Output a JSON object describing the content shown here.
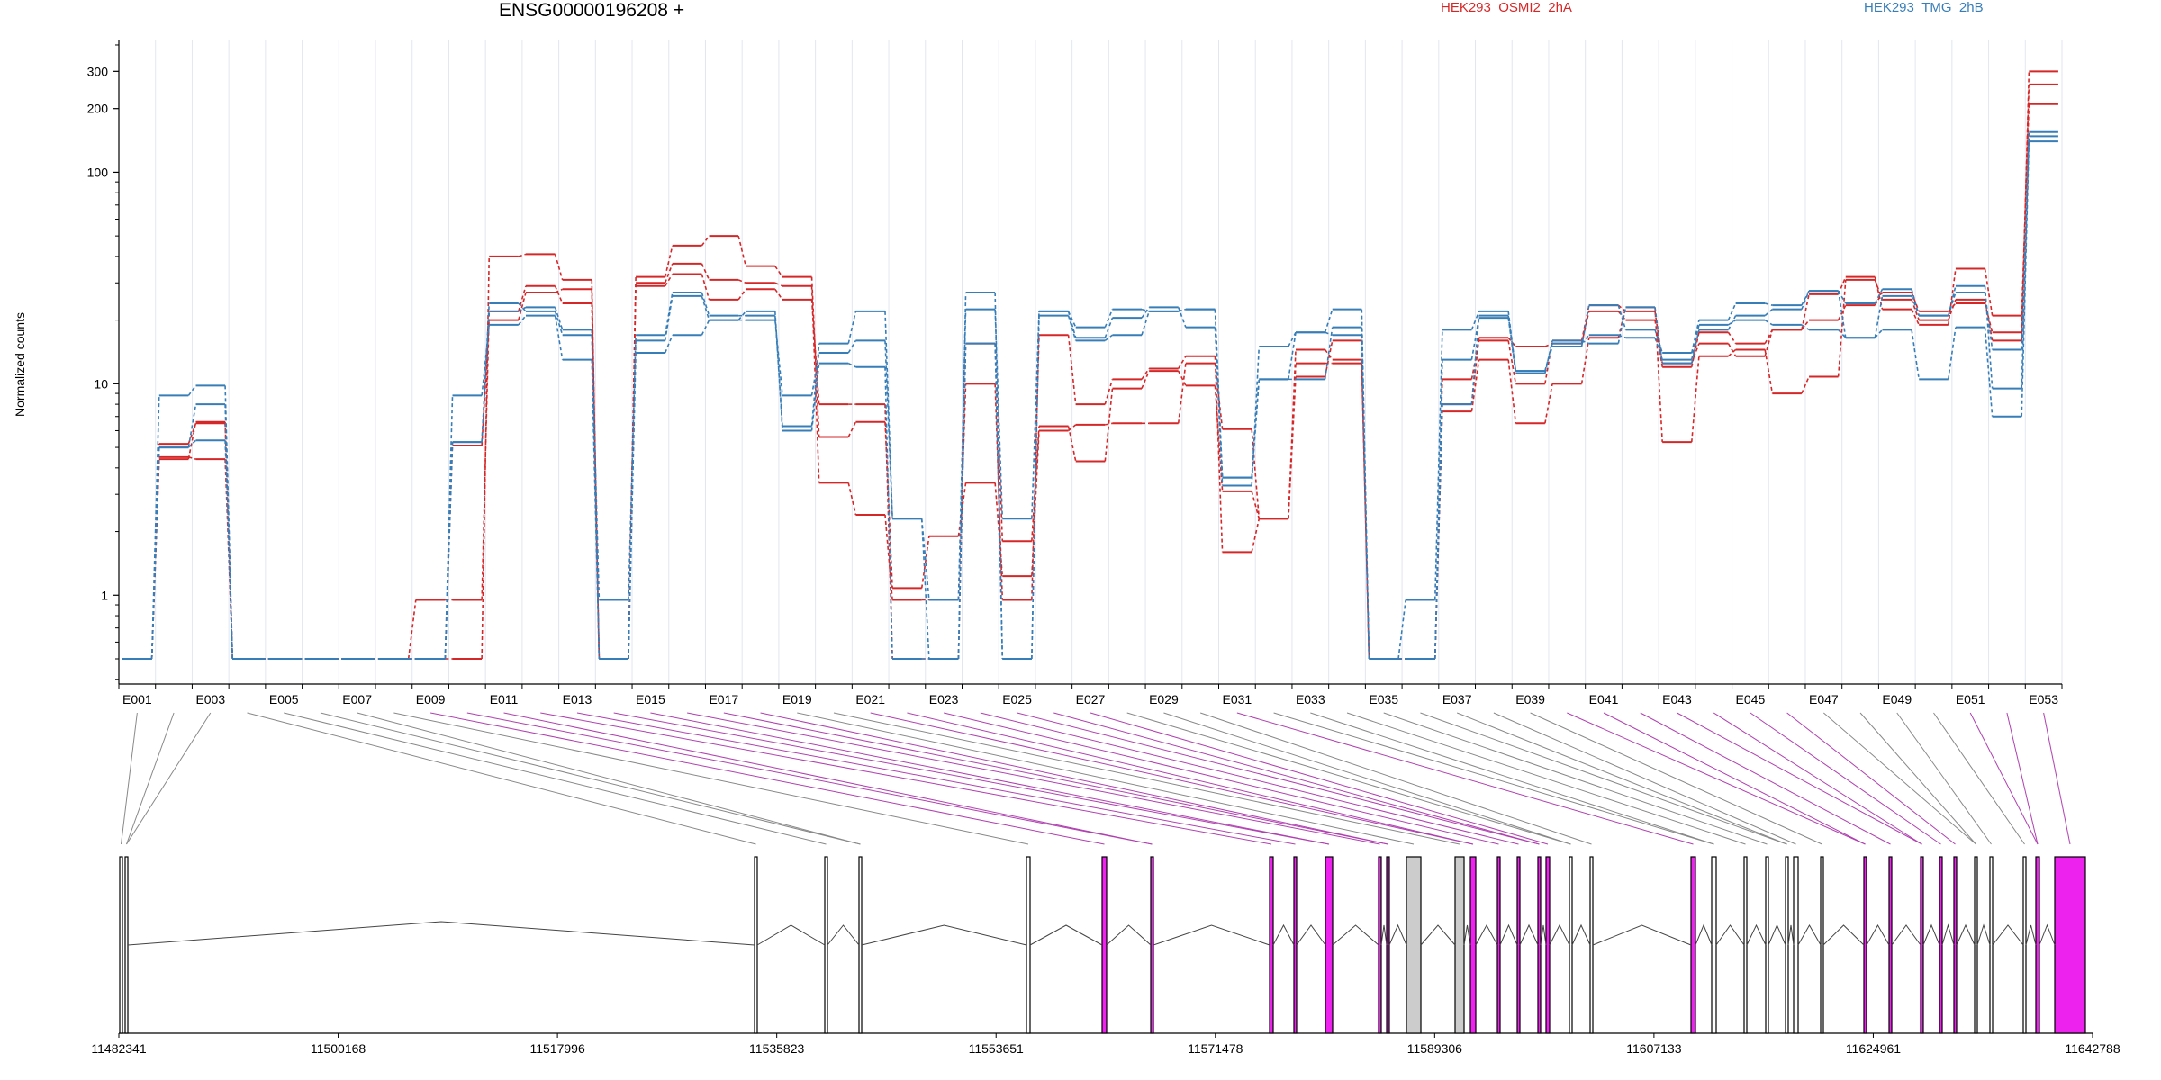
{
  "chart_data": {
    "type": "line",
    "title": "ENSG00000196208 +",
    "ylabel": "Normalized counts",
    "y_scale": "log",
    "y_ticks": [
      1,
      10,
      100,
      200,
      300
    ],
    "y_tick_labels": [
      "1",
      "10",
      "100",
      "200",
      "300"
    ],
    "x_categories": [
      "E001",
      "E002",
      "E003",
      "E004",
      "E005",
      "E006",
      "E007",
      "E008",
      "E009",
      "E010",
      "E011",
      "E012",
      "E013",
      "E014",
      "E015",
      "E016",
      "E017",
      "E018",
      "E019",
      "E020",
      "E021",
      "E022",
      "E023",
      "E024",
      "E025",
      "E026",
      "E027",
      "E028",
      "E029",
      "E030",
      "E031",
      "E032",
      "E033",
      "E034",
      "E035",
      "E036",
      "E037",
      "E038",
      "E039",
      "E040",
      "E041",
      "E042",
      "E043",
      "E044",
      "E045",
      "E046",
      "E047",
      "E048",
      "E049",
      "E050",
      "E051",
      "E052",
      "E053"
    ],
    "x_tick_labels": [
      "E001",
      "E003",
      "E005",
      "E007",
      "E009",
      "E011",
      "E013",
      "E015",
      "E017",
      "E019",
      "E021",
      "E023",
      "E025",
      "E027",
      "E029",
      "E031",
      "E033",
      "E035",
      "E037",
      "E039",
      "E041",
      "E043",
      "E045",
      "E047",
      "E049",
      "E051",
      "E053"
    ],
    "legend": [
      {
        "label": "HEK293_OSMI2_2hA",
        "color": "#d62728"
      },
      {
        "label": "HEK293_TMG_2hB",
        "color": "#377eb8"
      }
    ],
    "series": [
      {
        "group": "red",
        "values": [
          0.5,
          4.5,
          4.4,
          0.5,
          0.5,
          0.5,
          0.5,
          0.5,
          0.5,
          0.5,
          40,
          41,
          31,
          0.5,
          32,
          45,
          50,
          36,
          32,
          5.6,
          6.6,
          1.08,
          1.9,
          3.4,
          1.23,
          6.0,
          6.4,
          6.5,
          6.5,
          12.5,
          6.1,
          2.3,
          12.5,
          12.5,
          0.5,
          0.5,
          7.4,
          13.0,
          6.5,
          10.0,
          16.5,
          23.0,
          5.3,
          13.5,
          14.5,
          9.0,
          10.8,
          31.0,
          25.0,
          20.0,
          25.0,
          16.0,
          300
        ]
      },
      {
        "group": "red",
        "values": [
          0.5,
          4.4,
          6.6,
          0.5,
          0.5,
          0.5,
          0.5,
          0.5,
          0.95,
          0.95,
          22,
          29,
          24,
          0.5,
          30,
          37,
          31,
          30,
          29,
          3.4,
          2.4,
          0.95,
          0.95,
          10.0,
          0.95,
          17.0,
          8.0,
          10.5,
          11.8,
          13.5,
          1.6,
          2.3,
          10.8,
          16.0,
          0.5,
          0.5,
          8.0,
          16.5,
          15.0,
          15.5,
          22.0,
          20.0,
          12.0,
          17.5,
          15.5,
          18.0,
          26.5,
          32.0,
          22.5,
          19.0,
          35.0,
          21.0,
          210
        ]
      },
      {
        "group": "red",
        "values": [
          0.5,
          5.2,
          6.5,
          0.5,
          0.5,
          0.5,
          0.5,
          0.5,
          0.5,
          5.1,
          20,
          27,
          28,
          0.5,
          29,
          33,
          25,
          28,
          25,
          8.0,
          8.0,
          0.5,
          0.5,
          15.5,
          1.8,
          6.3,
          4.3,
          9.5,
          11.5,
          9.8,
          3.1,
          2.3,
          14.5,
          13.0,
          0.5,
          0.5,
          10.5,
          16.0,
          10.0,
          16.0,
          23.5,
          22.0,
          12.5,
          15.5,
          13.5,
          18.0,
          20.0,
          23.5,
          27.0,
          22.0,
          24.0,
          17.5,
          260
        ]
      },
      {
        "group": "blue",
        "values": [
          0.5,
          8.8,
          9.8,
          0.5,
          0.5,
          0.5,
          0.5,
          0.5,
          0.5,
          5.3,
          24,
          22,
          17,
          0.95,
          17,
          27,
          21,
          21,
          6.3,
          15.5,
          22,
          2.3,
          0.5,
          27.0,
          0.5,
          21.0,
          16.0,
          17.0,
          22.0,
          22.5,
          3.6,
          10.5,
          10.5,
          18.5,
          0.5,
          0.95,
          18.0,
          22.0,
          11.5,
          15.0,
          23.5,
          18.0,
          14.0,
          20.0,
          24.0,
          23.5,
          27.5,
          24.0,
          28.0,
          21.0,
          29.0,
          9.5,
          155
        ]
      },
      {
        "group": "blue",
        "values": [
          0.5,
          5.0,
          5.4,
          0.5,
          0.5,
          0.5,
          0.5,
          0.5,
          0.5,
          8.8,
          19,
          21,
          13,
          0.5,
          14,
          17,
          20,
          20,
          8.8,
          14.0,
          16,
          2.3,
          0.95,
          22.5,
          2.3,
          22.0,
          16.5,
          20.5,
          23.0,
          18.5,
          3.3,
          15.0,
          17.5,
          22.5,
          0.5,
          0.5,
          13.0,
          20.5,
          11.2,
          16.0,
          15.5,
          23.0,
          12.5,
          18.0,
          21.0,
          22.5,
          27.5,
          16.5,
          18.0,
          10.5,
          18.5,
          7.0,
          140
        ]
      },
      {
        "group": "blue",
        "values": [
          0.5,
          5.0,
          8.0,
          0.5,
          0.5,
          0.5,
          0.5,
          0.5,
          0.5,
          5.3,
          22,
          23,
          18,
          0.5,
          16,
          26,
          20,
          22,
          6.0,
          12.5,
          12,
          0.5,
          0.5,
          15.5,
          0.5,
          22.0,
          18.5,
          22.5,
          22.0,
          22.5,
          3.6,
          10.5,
          17.5,
          17.0,
          0.5,
          0.5,
          8.0,
          21.0,
          11.5,
          15.5,
          17.0,
          16.5,
          13.0,
          19.0,
          20.0,
          19.0,
          18.0,
          16.5,
          26.0,
          21.0,
          27.0,
          14.5,
          148
        ]
      }
    ],
    "genomic_axis": {
      "ticks": [
        11482341,
        11500168,
        11517996,
        11535823,
        11553651,
        11571478,
        11589306,
        11607133,
        11624961,
        11642788
      ],
      "tick_labels": [
        "11482341",
        "11500168",
        "11517996",
        "11535823",
        "11553651",
        "11571478",
        "11589306",
        "11607133",
        "11624961",
        "11642788"
      ],
      "range": [
        11482341,
        11642788
      ]
    },
    "exon_highlight_color": "#ee22ee",
    "exon_fill_color": "#cccccc",
    "exon_line_color": "#000000",
    "guide_line_gray": "#888888",
    "guide_line_purple": "#b040b0"
  }
}
